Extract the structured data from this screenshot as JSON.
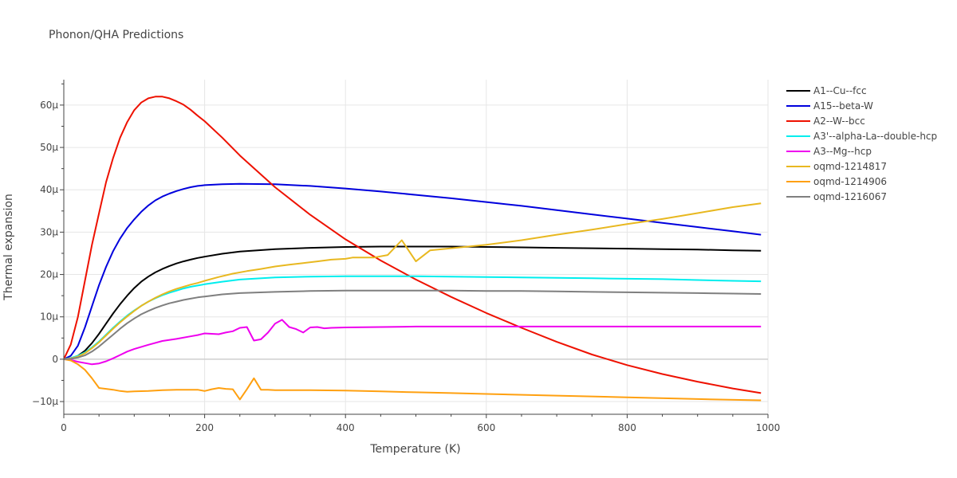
{
  "chart_data": {
    "type": "line",
    "title": "Phonon/QHA Predictions",
    "xlabel": "Temperature (K)",
    "ylabel": "Thermal expansion",
    "xlim": [
      0,
      1000
    ],
    "ylim": [
      -13,
      66
    ],
    "x_ticks": [
      0,
      200,
      400,
      600,
      800,
      1000
    ],
    "x_tick_labels": [
      "0",
      "200",
      "400",
      "600",
      "800",
      "1000"
    ],
    "y_ticks": [
      -10,
      0,
      10,
      20,
      30,
      40,
      50,
      60
    ],
    "y_tick_labels": [
      "−10μ",
      "0",
      "10μ",
      "20μ",
      "30μ",
      "40μ",
      "50μ",
      "60μ"
    ],
    "y_unit_note": "values in units of 1e-6 (μ)",
    "grid": true,
    "legend_position": "right",
    "series": [
      {
        "name": "A1--Cu--fcc",
        "color": "#000000",
        "x": [
          0,
          10,
          20,
          30,
          40,
          50,
          60,
          70,
          80,
          90,
          100,
          110,
          120,
          130,
          140,
          150,
          160,
          170,
          180,
          190,
          200,
          225,
          250,
          300,
          350,
          400,
          450,
          500,
          550,
          600,
          650,
          700,
          750,
          800,
          850,
          900,
          950,
          990
        ],
        "y": [
          0,
          0.2,
          0.8,
          2,
          3.8,
          6,
          8.4,
          10.8,
          13,
          15,
          16.8,
          18.3,
          19.5,
          20.5,
          21.3,
          22,
          22.6,
          23.1,
          23.5,
          23.9,
          24.2,
          24.9,
          25.4,
          26,
          26.3,
          26.5,
          26.6,
          26.6,
          26.6,
          26.5,
          26.4,
          26.3,
          26.2,
          26.1,
          26,
          25.9,
          25.7,
          25.6
        ]
      },
      {
        "name": "A15--beta-W",
        "color": "#0000dd",
        "x": [
          0,
          10,
          20,
          30,
          40,
          50,
          60,
          70,
          80,
          90,
          100,
          110,
          120,
          130,
          140,
          150,
          160,
          170,
          180,
          190,
          200,
          225,
          250,
          300,
          350,
          400,
          450,
          500,
          550,
          600,
          650,
          700,
          750,
          800,
          850,
          900,
          950,
          990
        ],
        "y": [
          0,
          0.8,
          3.2,
          7.5,
          12.5,
          17.5,
          21.8,
          25.5,
          28.5,
          31,
          33,
          34.8,
          36.3,
          37.5,
          38.4,
          39.1,
          39.7,
          40.2,
          40.6,
          40.9,
          41.1,
          41.3,
          41.4,
          41.3,
          40.9,
          40.3,
          39.6,
          38.8,
          38,
          37.1,
          36.2,
          35.2,
          34.2,
          33.2,
          32.2,
          31.2,
          30.2,
          29.4
        ]
      },
      {
        "name": "A2--W--bcc",
        "color": "#ee1100",
        "x": [
          0,
          10,
          20,
          30,
          40,
          50,
          60,
          70,
          80,
          90,
          100,
          110,
          120,
          130,
          140,
          150,
          160,
          170,
          180,
          190,
          200,
          225,
          250,
          300,
          350,
          400,
          450,
          500,
          550,
          600,
          650,
          700,
          750,
          800,
          850,
          900,
          950,
          990
        ],
        "y": [
          0,
          3.5,
          10,
          18.5,
          27,
          34.5,
          41.8,
          47.5,
          52.3,
          56,
          58.8,
          60.6,
          61.6,
          62,
          62,
          61.6,
          60.9,
          60.1,
          58.9,
          57.5,
          56.2,
          52.3,
          48.1,
          40.6,
          34.1,
          28.3,
          23.3,
          18.8,
          14.7,
          10.9,
          7.4,
          4.1,
          1.1,
          -1.4,
          -3.5,
          -5.3,
          -6.9,
          -8
        ]
      },
      {
        "name": "A3'--alpha-La--double-hcp",
        "color": "#00eeee",
        "x": [
          0,
          10,
          20,
          30,
          40,
          50,
          60,
          70,
          80,
          90,
          100,
          110,
          120,
          130,
          140,
          150,
          160,
          170,
          180,
          190,
          200,
          225,
          250,
          300,
          350,
          400,
          450,
          500,
          550,
          600,
          650,
          700,
          750,
          800,
          850,
          900,
          950,
          990
        ],
        "y": [
          0,
          0.3,
          0.8,
          1.6,
          2.8,
          4.2,
          5.8,
          7.4,
          8.9,
          10.3,
          11.5,
          12.6,
          13.6,
          14.4,
          15.1,
          15.7,
          16.2,
          16.7,
          17.1,
          17.4,
          17.7,
          18.3,
          18.8,
          19.3,
          19.5,
          19.6,
          19.6,
          19.6,
          19.5,
          19.4,
          19.3,
          19.2,
          19.1,
          19,
          18.9,
          18.7,
          18.5,
          18.4
        ]
      },
      {
        "name": "A3--Mg--hcp",
        "color": "#ee00ee",
        "x": [
          0,
          10,
          20,
          30,
          40,
          50,
          60,
          70,
          80,
          90,
          100,
          120,
          140,
          160,
          180,
          190,
          200,
          210,
          220,
          230,
          240,
          250,
          260,
          270,
          280,
          290,
          300,
          310,
          320,
          330,
          340,
          350,
          360,
          370,
          380,
          400,
          450,
          500,
          550,
          600,
          700,
          800,
          900,
          990
        ],
        "y": [
          0,
          -0.2,
          -0.6,
          -0.9,
          -1.2,
          -1,
          -0.5,
          0.2,
          1,
          1.8,
          2.4,
          3.4,
          4.3,
          4.8,
          5.4,
          5.7,
          6.1,
          6,
          5.9,
          6.3,
          6.6,
          7.4,
          7.6,
          4.4,
          4.7,
          6.3,
          8.4,
          9.3,
          7.6,
          7.1,
          6.3,
          7.5,
          7.6,
          7.3,
          7.4,
          7.5,
          7.6,
          7.7,
          7.7,
          7.7,
          7.7,
          7.7,
          7.7,
          7.7
        ]
      },
      {
        "name": "oqmd-1214817",
        "color": "#e8b820",
        "x": [
          0,
          10,
          20,
          30,
          40,
          50,
          60,
          70,
          80,
          90,
          100,
          110,
          120,
          130,
          140,
          150,
          160,
          170,
          180,
          190,
          200,
          220,
          240,
          260,
          280,
          300,
          320,
          340,
          360,
          380,
          390,
          400,
          410,
          420,
          440,
          460,
          480,
          500,
          520,
          550,
          600,
          650,
          700,
          750,
          800,
          850,
          900,
          950,
          990
        ],
        "y": [
          0,
          0.2,
          0.6,
          1.4,
          2.6,
          4,
          5.6,
          7.2,
          8.7,
          10.1,
          11.4,
          12.6,
          13.6,
          14.5,
          15.3,
          16,
          16.6,
          17.1,
          17.6,
          18,
          18.5,
          19.4,
          20.2,
          20.8,
          21.3,
          21.9,
          22.3,
          22.7,
          23.1,
          23.5,
          23.6,
          23.7,
          24,
          24,
          24,
          24.6,
          28.1,
          23.1,
          25.7,
          26.2,
          27,
          28.1,
          29.4,
          30.6,
          31.9,
          33.1,
          34.5,
          35.9,
          36.8
        ]
      },
      {
        "name": "oqmd-1214906",
        "color": "#ffa010",
        "x": [
          0,
          10,
          20,
          30,
          40,
          50,
          60,
          70,
          80,
          90,
          100,
          120,
          140,
          160,
          180,
          190,
          200,
          210,
          220,
          230,
          240,
          250,
          260,
          270,
          280,
          290,
          300,
          350,
          400,
          450,
          500,
          550,
          600,
          700,
          800,
          900,
          990
        ],
        "y": [
          0,
          -0.3,
          -1.2,
          -2.5,
          -4.5,
          -6.8,
          -7,
          -7.2,
          -7.5,
          -7.7,
          -7.6,
          -7.5,
          -7.3,
          -7.2,
          -7.2,
          -7.2,
          -7.5,
          -7.1,
          -6.8,
          -7,
          -7.1,
          -9.5,
          -7.1,
          -4.5,
          -7.2,
          -7.2,
          -7.3,
          -7.3,
          -7.4,
          -7.6,
          -7.8,
          -8,
          -8.2,
          -8.6,
          -9,
          -9.4,
          -9.7
        ]
      },
      {
        "name": "oqmd-1216067",
        "color": "#7f7f7f",
        "x": [
          0,
          10,
          20,
          30,
          40,
          50,
          60,
          70,
          80,
          90,
          100,
          110,
          120,
          130,
          140,
          150,
          160,
          170,
          180,
          190,
          200,
          225,
          250,
          300,
          350,
          400,
          450,
          500,
          550,
          600,
          650,
          700,
          750,
          800,
          850,
          900,
          950,
          990
        ],
        "y": [
          0,
          0.1,
          0.4,
          0.9,
          1.8,
          3,
          4.4,
          5.8,
          7.2,
          8.5,
          9.6,
          10.6,
          11.4,
          12.1,
          12.7,
          13.2,
          13.6,
          14,
          14.3,
          14.6,
          14.8,
          15.3,
          15.6,
          15.9,
          16.1,
          16.2,
          16.2,
          16.2,
          16.2,
          16.1,
          16.1,
          16,
          15.9,
          15.8,
          15.7,
          15.6,
          15.5,
          15.4
        ]
      }
    ]
  }
}
